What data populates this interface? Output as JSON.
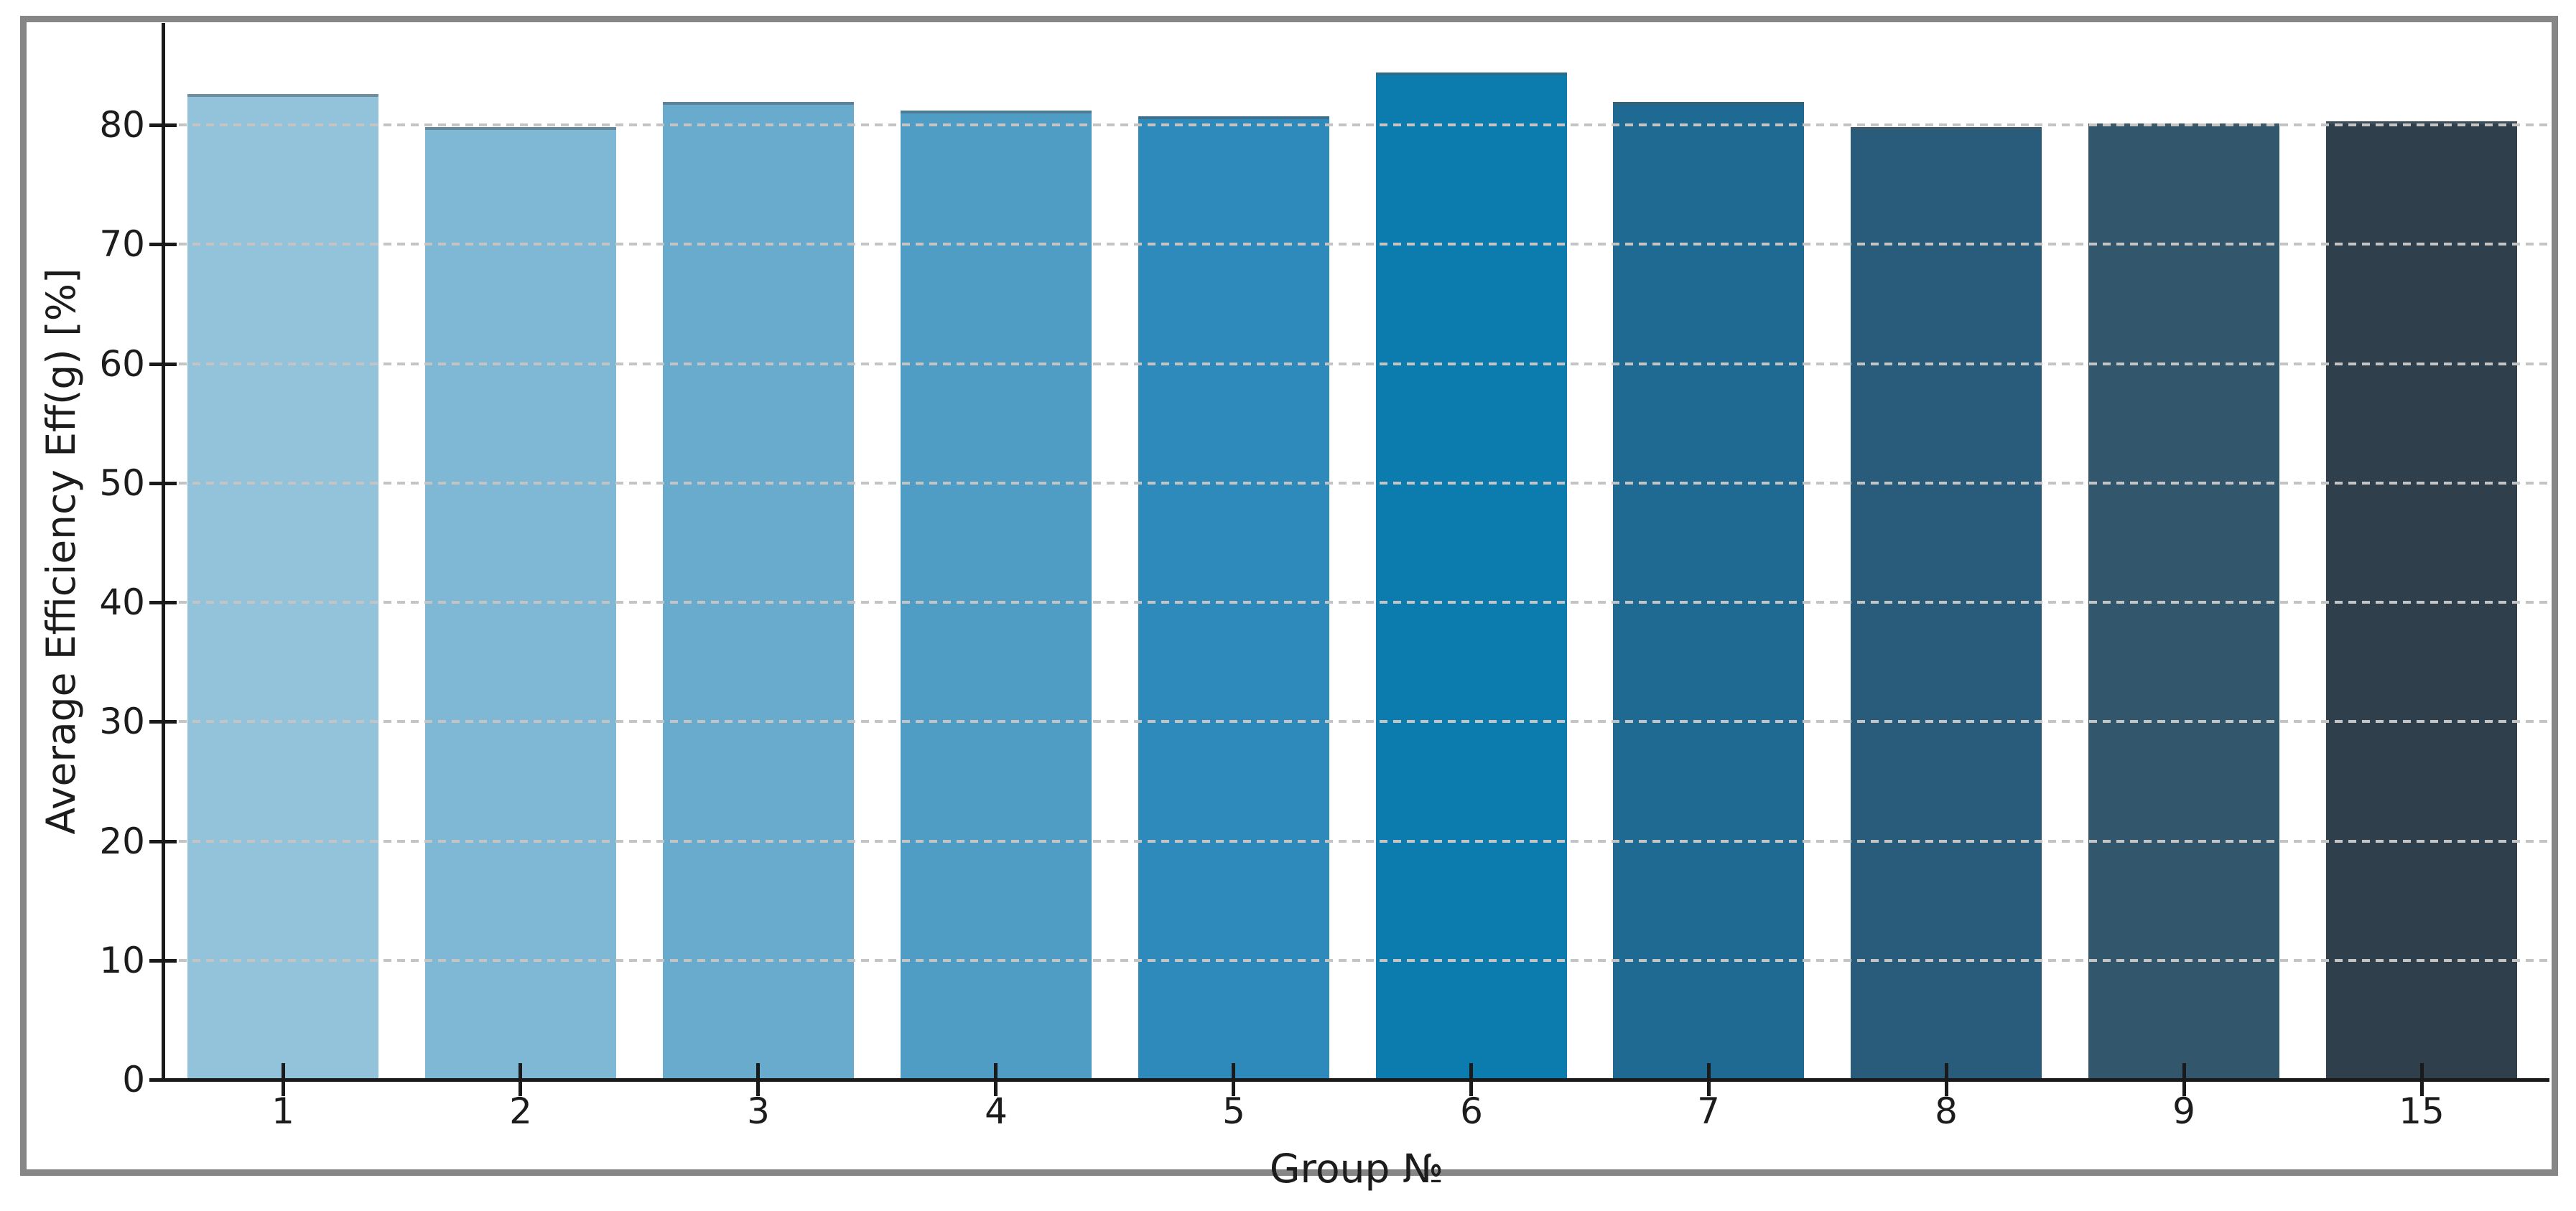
{
  "chart_data": {
    "type": "bar",
    "title": "",
    "xlabel": "Group №",
    "ylabel": "Average Efficiency Eff(g) [%]",
    "categories": [
      "1",
      "2",
      "3",
      "4",
      "5",
      "6",
      "7",
      "8",
      "9",
      "15"
    ],
    "values": [
      82.6,
      79.8,
      81.9,
      81.2,
      80.7,
      84.4,
      81.9,
      79.8,
      80.1,
      80.3
    ],
    "bar_colors": [
      "#92c3da",
      "#7fb8d5",
      "#68abcd",
      "#4f9cc5",
      "#2d8aba",
      "#0c7cae",
      "#1e6a92",
      "#295c7b",
      "#32566c",
      "#2f404c"
    ],
    "ylim": [
      0,
      88.5
    ],
    "yticks": [
      0,
      10,
      20,
      30,
      40,
      50,
      60,
      70,
      80
    ],
    "grid": "horizontal dashed, drawn over bars",
    "grid_color": "#c4c4c4",
    "axis_color": "#1a1a1a",
    "tick_label_color": "#1c1c1c",
    "frame_color": "#868686",
    "background_color": "#ffffff",
    "legend": "none"
  }
}
